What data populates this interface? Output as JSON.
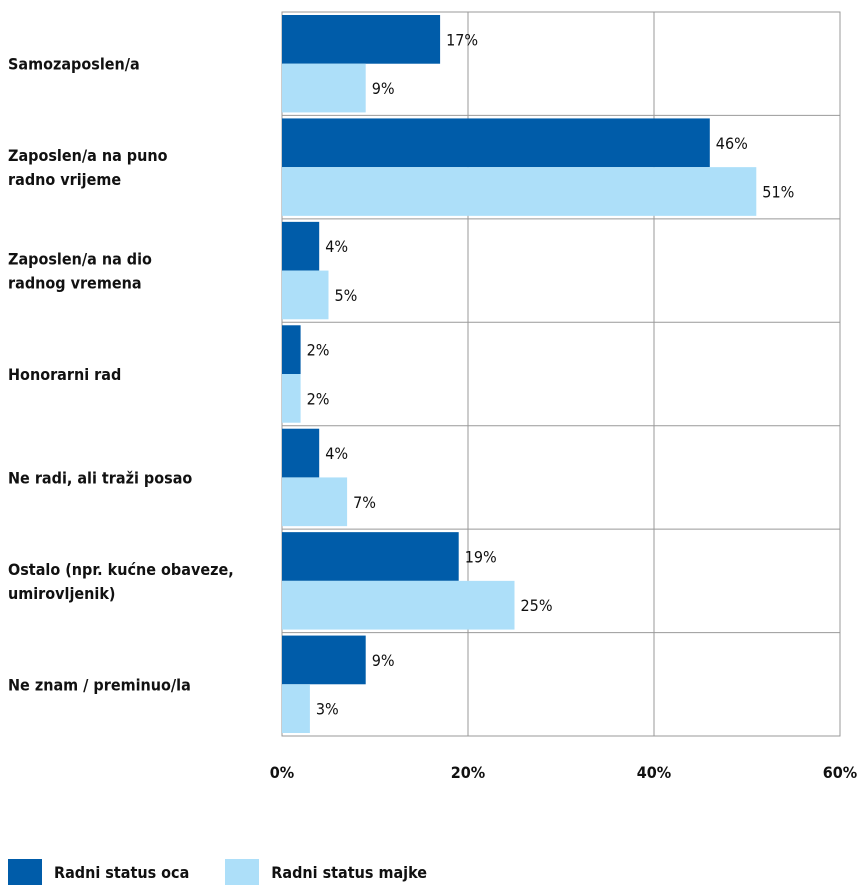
{
  "chart_data": {
    "type": "bar",
    "orientation": "horizontal",
    "categories": [
      [
        "Samozaposlen/a"
      ],
      [
        "Zaposlen/a na puno",
        "radno vrijeme"
      ],
      [
        "Zaposlen/a na dio",
        "radnog vremena"
      ],
      [
        "Honorarni rad"
      ],
      [
        "Ne radi, ali traži posao"
      ],
      [
        "Ostalo (npr. kućne obaveze,",
        "umirovljenik)"
      ],
      [
        "Ne znam / preminuo/la"
      ]
    ],
    "series": [
      {
        "name": "Radni status oca",
        "color": "#005CA9",
        "values": [
          17,
          46,
          4,
          2,
          4,
          19,
          9
        ]
      },
      {
        "name": "Radni status majke",
        "color": "#ADDFF9",
        "values": [
          9,
          51,
          5,
          2,
          7,
          25,
          3
        ]
      }
    ],
    "value_suffix": "%",
    "xlim": [
      0,
      60
    ],
    "xticks": [
      0,
      20,
      40,
      60
    ],
    "xtick_labels": [
      "0%",
      "20%",
      "40%",
      "60%"
    ],
    "grid": true,
    "legend_position": "bottom-left"
  }
}
